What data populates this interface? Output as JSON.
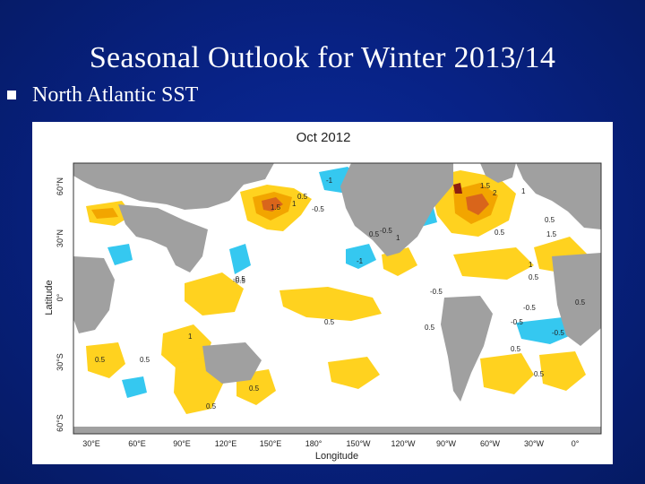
{
  "slide": {
    "title": "Seasonal Outlook for Winter 2013/14",
    "bullet": "North Atlantic SST"
  },
  "figure": {
    "panel_title": "Oct 2012",
    "xlabel": "Longitude",
    "ylabel": "Latitude",
    "x_ticks": [
      "30°E",
      "60°E",
      "90°E",
      "120°E",
      "150°E",
      "180°",
      "150°W",
      "120°W",
      "90°W",
      "60°W",
      "30°W",
      "0°"
    ],
    "y_ticks": [
      "60°N",
      "30°N",
      "0°",
      "30°S",
      "60°S"
    ],
    "contour_labels": [
      "-1",
      "1",
      "-0.5",
      "1.5",
      "0.5",
      "-0.5",
      "-0.5",
      "0.5",
      "-1",
      "-0.5",
      "1",
      "0.5",
      "-0.5",
      "0.5",
      "0.5",
      "1.5",
      "2",
      "1",
      "0.5",
      "1.5",
      "0.5",
      "0.5",
      "1",
      "-0.5",
      "0.5",
      "0.5",
      "-0.5",
      "-0.5",
      "0.5",
      "0.5",
      "1",
      "0.5",
      "0.5"
    ],
    "colors": {
      "land": "#a0a0a0",
      "warm_light": "#ffd21f",
      "warm_mid": "#f2a500",
      "warm_strong": "#d9651b",
      "warm_extreme": "#8e1e10",
      "cool": "#35c8f0",
      "ocean_neutral": "#ffffff"
    }
  }
}
